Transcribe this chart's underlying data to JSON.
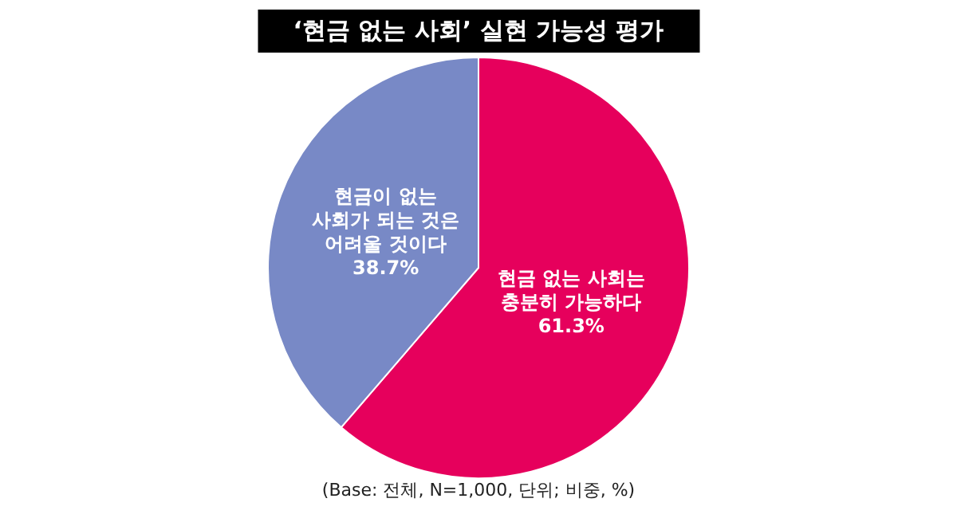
{
  "chart_data": {
    "type": "pie",
    "title": "‘현금 없는 사회’ 실현 가능성 평가",
    "categories": [
      "현금 없는 사회는 충분히 가능하다",
      "현금이 없는 사회가 되는 것은 어려울 것이다"
    ],
    "values": [
      61.3,
      38.7
    ],
    "value_labels": [
      "61.3%",
      "38.7%"
    ],
    "colors": [
      "#e6005c",
      "#7889c6"
    ],
    "annotations": [
      "(Base: 전체, N=1,000, 단위; 비중, %)"
    ]
  }
}
